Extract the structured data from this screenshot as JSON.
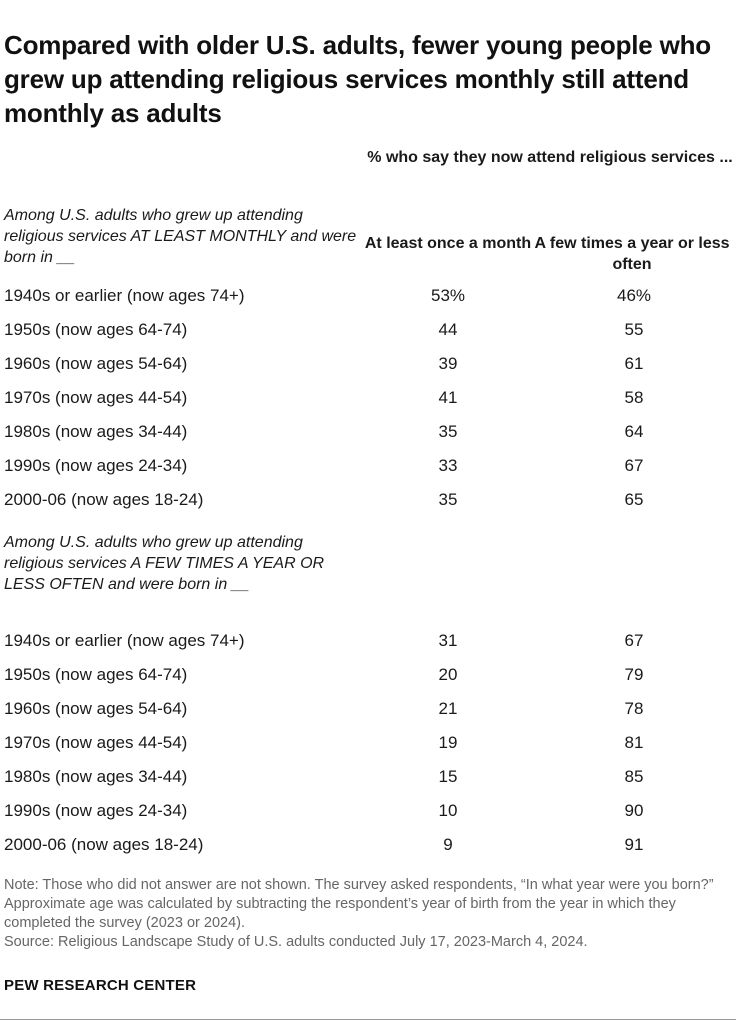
{
  "title": "Compared with older U.S. adults, fewer young people who grew up attending religious services monthly still attend monthly as adults",
  "table_header": {
    "supra": "% who say they now attend religious services ...",
    "col1": "At least once a month",
    "col2": "A few times a year or less often"
  },
  "chart_data": {
    "type": "table",
    "columns": [
      "At least once a month",
      "A few times a year or less often"
    ],
    "groups": [
      {
        "label": "Among U.S. adults who grew up attending religious services AT LEAST MONTHLY and were born in __",
        "rows": [
          {
            "label": "1940s or earlier (now ages 74+)",
            "v1": "53%",
            "v2": "46%"
          },
          {
            "label": "1950s (now ages 64-74)",
            "v1": "44",
            "v2": "55"
          },
          {
            "label": "1960s (now ages 54-64)",
            "v1": "39",
            "v2": "61"
          },
          {
            "label": "1970s (now ages 44-54)",
            "v1": "41",
            "v2": "58"
          },
          {
            "label": "1980s (now ages 34-44)",
            "v1": "35",
            "v2": "64"
          },
          {
            "label": "1990s (now ages 24-34)",
            "v1": "33",
            "v2": "67"
          },
          {
            "label": "2000-06 (now ages 18-24)",
            "v1": "35",
            "v2": "65"
          }
        ]
      },
      {
        "label": "Among U.S. adults who grew up attending religious services A FEW TIMES A YEAR OR LESS OFTEN and were born in __",
        "rows": [
          {
            "label": "1940s or earlier (now ages 74+)",
            "v1": "31",
            "v2": "67"
          },
          {
            "label": "1950s (now ages 64-74)",
            "v1": "20",
            "v2": "79"
          },
          {
            "label": "1960s (now ages 54-64)",
            "v1": "21",
            "v2": "78"
          },
          {
            "label": "1970s (now ages 44-54)",
            "v1": "19",
            "v2": "81"
          },
          {
            "label": "1980s (now ages 34-44)",
            "v1": "15",
            "v2": "85"
          },
          {
            "label": "1990s (now ages 24-34)",
            "v1": "10",
            "v2": "90"
          },
          {
            "label": "2000-06 (now ages 18-24)",
            "v1": "9",
            "v2": "91"
          }
        ]
      }
    ]
  },
  "note": "Note: Those who did not answer are not shown. The survey asked respondents, “In what year were you born?” Approximate age was calculated by subtracting the respondent’s year of birth from the year in which they completed the survey (2023 or 2024).",
  "source": "Source: Religious Landscape Study of U.S. adults conducted July 17, 2023-March 4, 2024.",
  "org": "PEW RESEARCH CENTER"
}
